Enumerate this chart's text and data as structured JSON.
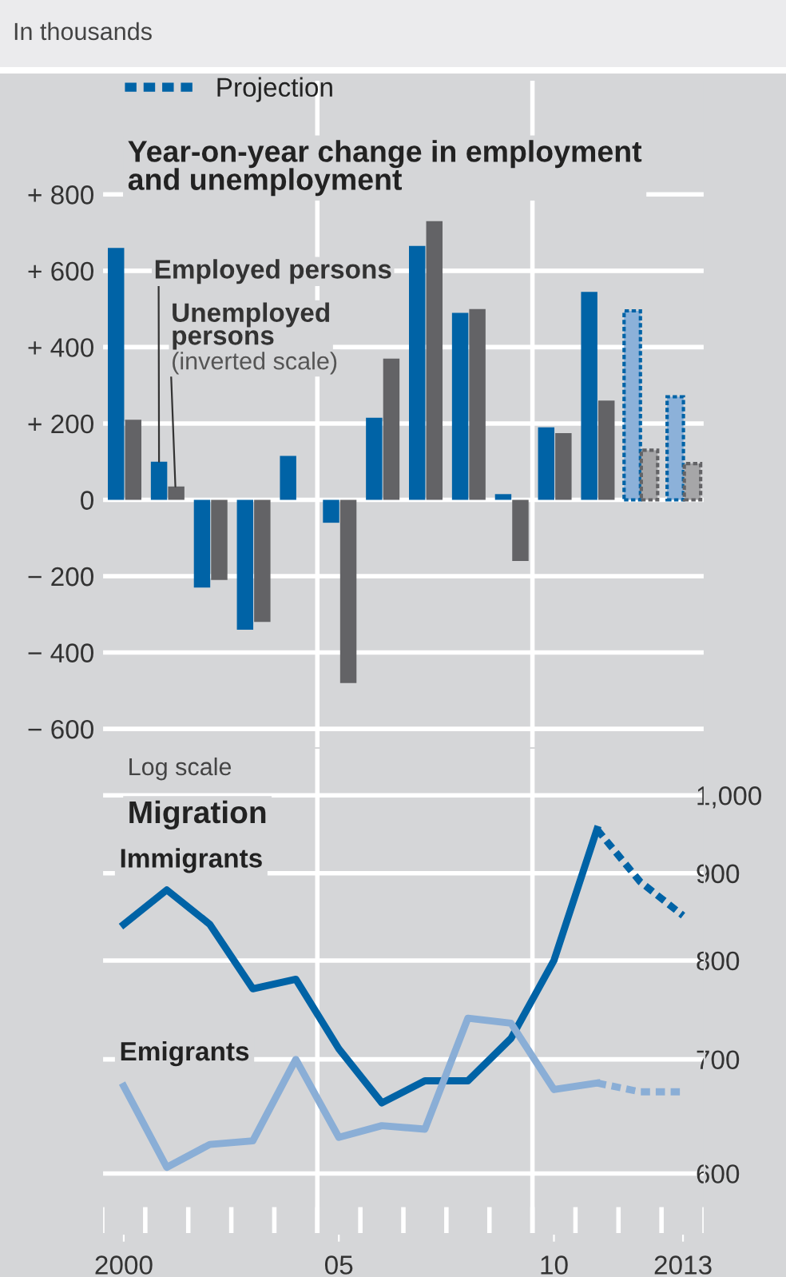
{
  "chart_data": [
    {
      "type": "bar",
      "title": "Year-on-year change in employment\nand unemployment",
      "annotations": [
        "In thousands",
        {
          "text": "(inverted scale)",
          "x": 2001.2,
          "y": 35
        }
      ],
      "xlim": [
        1999.5,
        2013.5
      ],
      "ylim": [
        -650,
        1100
      ],
      "yticks": [
        {
          "value": -600,
          "label": "− 600"
        },
        {
          "value": -400,
          "label": "− 400"
        },
        {
          "value": -200,
          "label": "− 200"
        },
        0,
        {
          "value": 200,
          "label": "+ 200"
        },
        {
          "value": 400,
          "label": "+ 400"
        },
        {
          "value": 600,
          "label": "+ 600"
        },
        {
          "value": 800,
          "label": "+ 800"
        }
      ],
      "tick_labels": "y",
      "grid": "y",
      "legend": "top left",
      "ref_lines": [
        {
          "axis": "x",
          "value": 2004.5,
          "color": "#ffffff"
        },
        {
          "axis": "x",
          "value": 2009.5,
          "color": "#ffffff"
        }
      ],
      "series": [
        {
          "name": "Employed persons",
          "color": "#0063a6",
          "x": [
            2000,
            2001,
            2002,
            2003,
            2004,
            2005,
            2006,
            2007,
            2008,
            2009,
            2010,
            2011
          ],
          "values": [
            660,
            100,
            -230,
            -340,
            115,
            -60,
            215,
            665,
            490,
            15,
            190,
            545
          ]
        },
        {
          "name": "Unemployed persons",
          "color": "#636366",
          "x": [
            2000,
            2001,
            2002,
            2003,
            2004,
            2005,
            2006,
            2007,
            2008,
            2009,
            2010,
            2011
          ],
          "values": [
            210,
            35,
            -210,
            -320,
            null,
            -480,
            370,
            730,
            500,
            -160,
            175,
            260
          ]
        },
        {
          "name": "Projection",
          "color": "#8cb1d9",
          "line_style": "dashed",
          "x": [
            2012,
            2013
          ],
          "values": [
            495,
            270
          ]
        },
        {
          "color": "#a6a6a8",
          "line_style": "dashed",
          "x": [
            2012,
            2013
          ],
          "values": [
            130,
            95
          ]
        }
      ]
    },
    {
      "type": "line",
      "title": "Migration",
      "annotations": [
        "Log scale"
      ],
      "log": true,
      "xlim": [
        1999.5,
        2013.5
      ],
      "ylim": [
        553,
        1066
      ],
      "xticks": [
        {
          "value": 2000,
          "label": "2000"
        },
        {
          "value": 2005,
          "label": "05"
        },
        {
          "value": 2010,
          "label": "10"
        },
        {
          "value": 2013,
          "label": "2013"
        }
      ],
      "yticks": [
        600,
        700,
        800,
        900,
        {
          "value": 1000,
          "label": "1,000"
        }
      ],
      "grid": "y",
      "marker": "none",
      "ref_lines": [
        {
          "axis": "x",
          "value": 2004.5,
          "color": "#ffffff"
        },
        {
          "axis": "x",
          "value": 2009.5,
          "color": "#ffffff"
        }
      ],
      "series": [
        {
          "name": "Immigrants",
          "color": "#0063a6",
          "line_style": "solid",
          "x": [
            2000,
            2001,
            2002,
            2003,
            2004,
            2005,
            2006,
            2007,
            2008,
            2009,
            2010,
            2011
          ],
          "values": [
            840,
            880,
            840,
            770,
            780,
            710,
            660,
            680,
            680,
            720,
            800,
            955
          ]
        },
        {
          "name": "Emigrants",
          "color": "#8aaed6",
          "line_style": "solid",
          "x": [
            2000,
            2001,
            2002,
            2003,
            2004,
            2005,
            2006,
            2007,
            2008,
            2009,
            2010,
            2011
          ],
          "values": [
            675,
            605,
            624,
            627,
            700,
            630,
            640,
            637,
            740,
            735,
            672,
            678
          ]
        },
        {
          "color": "#0063a6",
          "line_style": "dashed",
          "x": [
            2011,
            2012,
            2013
          ],
          "values": [
            955,
            890,
            850
          ]
        },
        {
          "color": "#8aaed6",
          "line_style": "dashed",
          "x": [
            2011,
            2012,
            2013
          ],
          "values": [
            678,
            670,
            670
          ]
        }
      ]
    }
  ]
}
